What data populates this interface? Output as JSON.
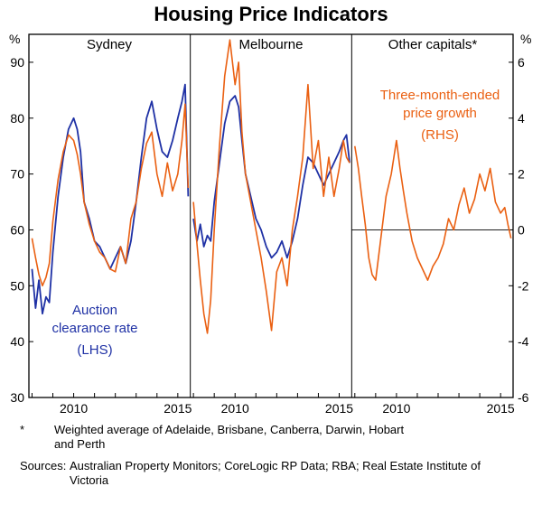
{
  "chart_data": {
    "type": "line",
    "title": "Housing Price Indicators",
    "left_axis": {
      "label": "%",
      "min": 30,
      "max": 95,
      "ticks": [
        90,
        80,
        70,
        60,
        50,
        40,
        30
      ]
    },
    "right_axis": {
      "label": "%",
      "min": -6,
      "max": 7,
      "ticks": [
        6,
        4,
        2,
        0,
        -2,
        -4,
        -6
      ]
    },
    "x_range": [
      2007.85,
      2015.6
    ],
    "x_minor_ticks": [
      2008,
      2009,
      2010,
      2011,
      2012,
      2013,
      2014,
      2015
    ],
    "x_tick_labels": [
      2010,
      2015
    ],
    "x": [
      2008,
      2008.17,
      2008.33,
      2008.5,
      2008.67,
      2008.83,
      2009,
      2009.25,
      2009.5,
      2009.75,
      2010,
      2010.17,
      2010.33,
      2010.5,
      2010.75,
      2011,
      2011.25,
      2011.5,
      2011.75,
      2012,
      2012.25,
      2012.5,
      2012.75,
      2013,
      2013.25,
      2013.5,
      2013.75,
      2014,
      2014.25,
      2014.5,
      2014.75,
      2015,
      2015.2,
      2015.35,
      2015.5
    ],
    "panels": [
      {
        "label": "Sydney",
        "series": [
          {
            "name": "Auction clearance rate (LHS)",
            "axis": "left",
            "color": "#1f31a5",
            "values": [
              53,
              46,
              51,
              45,
              48,
              47,
              56,
              66,
              73,
              78,
              80,
              78,
              74,
              65,
              62,
              58,
              57,
              55,
              53,
              55,
              57,
              54,
              58,
              65,
              73,
              80,
              83,
              78,
              74,
              73,
              76,
              80,
              83,
              86,
              66
            ]
          },
          {
            "name": "Three-month-ended price growth (RHS)",
            "axis": "right",
            "color": "#ea6012",
            "values": [
              -0.3,
              -1.0,
              -1.6,
              -2.0,
              -1.7,
              -1.2,
              0.3,
              1.8,
              2.8,
              3.4,
              3.2,
              2.7,
              2.0,
              1.0,
              0.2,
              -0.4,
              -0.8,
              -1.0,
              -1.4,
              -1.5,
              -0.6,
              -1.2,
              0.4,
              1.0,
              2.2,
              3.1,
              3.5,
              2.0,
              1.2,
              2.4,
              1.4,
              2.0,
              3.2,
              4.5,
              1.5
            ]
          }
        ]
      },
      {
        "label": "Melbourne",
        "series": [
          {
            "name": "Auction clearance rate (LHS)",
            "axis": "left",
            "color": "#1f31a5",
            "values": [
              62,
              58,
              61,
              57,
              59,
              58,
              65,
              72,
              79,
              83,
              84,
              82,
              76,
              70,
              66,
              62,
              60,
              57,
              55,
              56,
              58,
              55,
              58,
              62,
              68,
              73,
              72,
              70,
              68,
              70,
              72,
              74,
              76,
              77,
              72
            ]
          },
          {
            "name": "Three-month-ended price growth (RHS)",
            "axis": "right",
            "color": "#ea6012",
            "values": [
              1.0,
              -0.5,
              -1.8,
              -3.0,
              -3.7,
              -2.5,
              0.0,
              3.0,
              5.5,
              6.8,
              5.2,
              6.0,
              3.5,
              2.0,
              1.0,
              0.0,
              -1.0,
              -2.2,
              -3.6,
              -1.5,
              -1.0,
              -2.0,
              0.0,
              1.2,
              2.6,
              5.2,
              2.2,
              3.2,
              1.2,
              2.6,
              1.2,
              2.2,
              3.2,
              2.6,
              2.4
            ]
          }
        ]
      },
      {
        "label": "Other capitals*",
        "zero_line": true,
        "series": [
          {
            "name": "Three-month-ended price growth (RHS)",
            "axis": "right",
            "color": "#ea6012",
            "values": [
              3.0,
              2.2,
              1.2,
              0.2,
              -1.0,
              -1.6,
              -1.8,
              -0.3,
              1.2,
              2.0,
              3.2,
              2.2,
              1.4,
              0.6,
              -0.4,
              -1.0,
              -1.4,
              -1.8,
              -1.3,
              -1.0,
              -0.5,
              0.4,
              0.0,
              0.9,
              1.5,
              0.6,
              1.1,
              2.0,
              1.4,
              2.2,
              1.0,
              0.6,
              0.8,
              0.2,
              -0.3
            ]
          }
        ]
      }
    ],
    "annotations": {
      "lhs": {
        "line1": "Auction",
        "line2": "clearance rate",
        "line3": "(LHS)",
        "color": "#1f31a5"
      },
      "rhs": {
        "line1": "Three-month-ended",
        "line2": "price growth",
        "line3": "(RHS)",
        "color": "#ea6012"
      }
    }
  },
  "footnotes": {
    "asterisk_marker": "*",
    "asterisk_text": "Weighted average of Adelaide, Brisbane, Canberra, Darwin, Hobart and Perth",
    "sources_label": "Sources:",
    "sources_text": "Australian Property Monitors; CoreLogic RP Data; RBA; Real Estate Institute of Victoria"
  }
}
